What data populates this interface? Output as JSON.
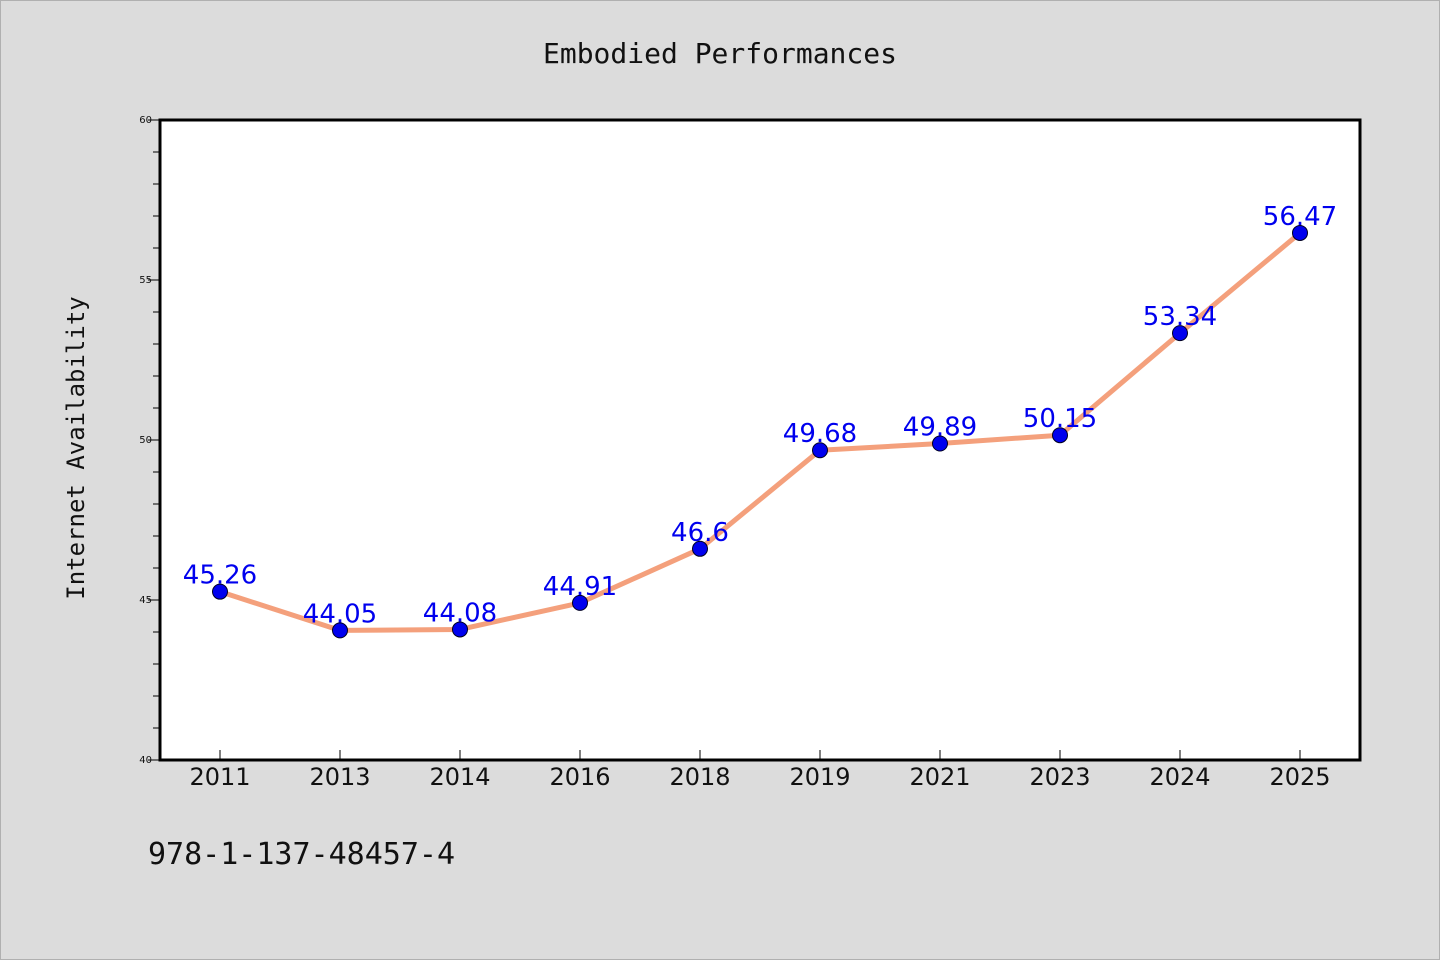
{
  "chart_data": {
    "type": "line",
    "title": "Embodied Performances",
    "xlabel": "",
    "ylabel": "Internet Availability",
    "categories": [
      "2011",
      "2013",
      "2014",
      "2016",
      "2018",
      "2019",
      "2021",
      "2023",
      "2024",
      "2025"
    ],
    "series": [
      {
        "values": [
          45.26,
          44.05,
          44.08,
          44.91,
          46.6,
          49.68,
          49.89,
          50.15,
          53.34,
          56.47
        ],
        "data_labels": [
          "45.26",
          "44.05",
          "44.08",
          "44.91",
          "46.6",
          "49.68",
          "49.89",
          "50.15",
          "53.34",
          "56.47"
        ],
        "line_color": "#f4a07c",
        "marker_color": "#0000ee"
      }
    ],
    "ylim": [
      40,
      60
    ],
    "y_major_ticks": [
      40,
      45,
      50,
      55,
      60
    ],
    "y_minor_step": 1,
    "grid": false,
    "legend": "none"
  },
  "footer": {
    "code": "978-1-137-48457-4"
  },
  "colors": {
    "background": "#dcdcdc",
    "plot_area": "#ffffff",
    "label_text": "#0000ee"
  }
}
